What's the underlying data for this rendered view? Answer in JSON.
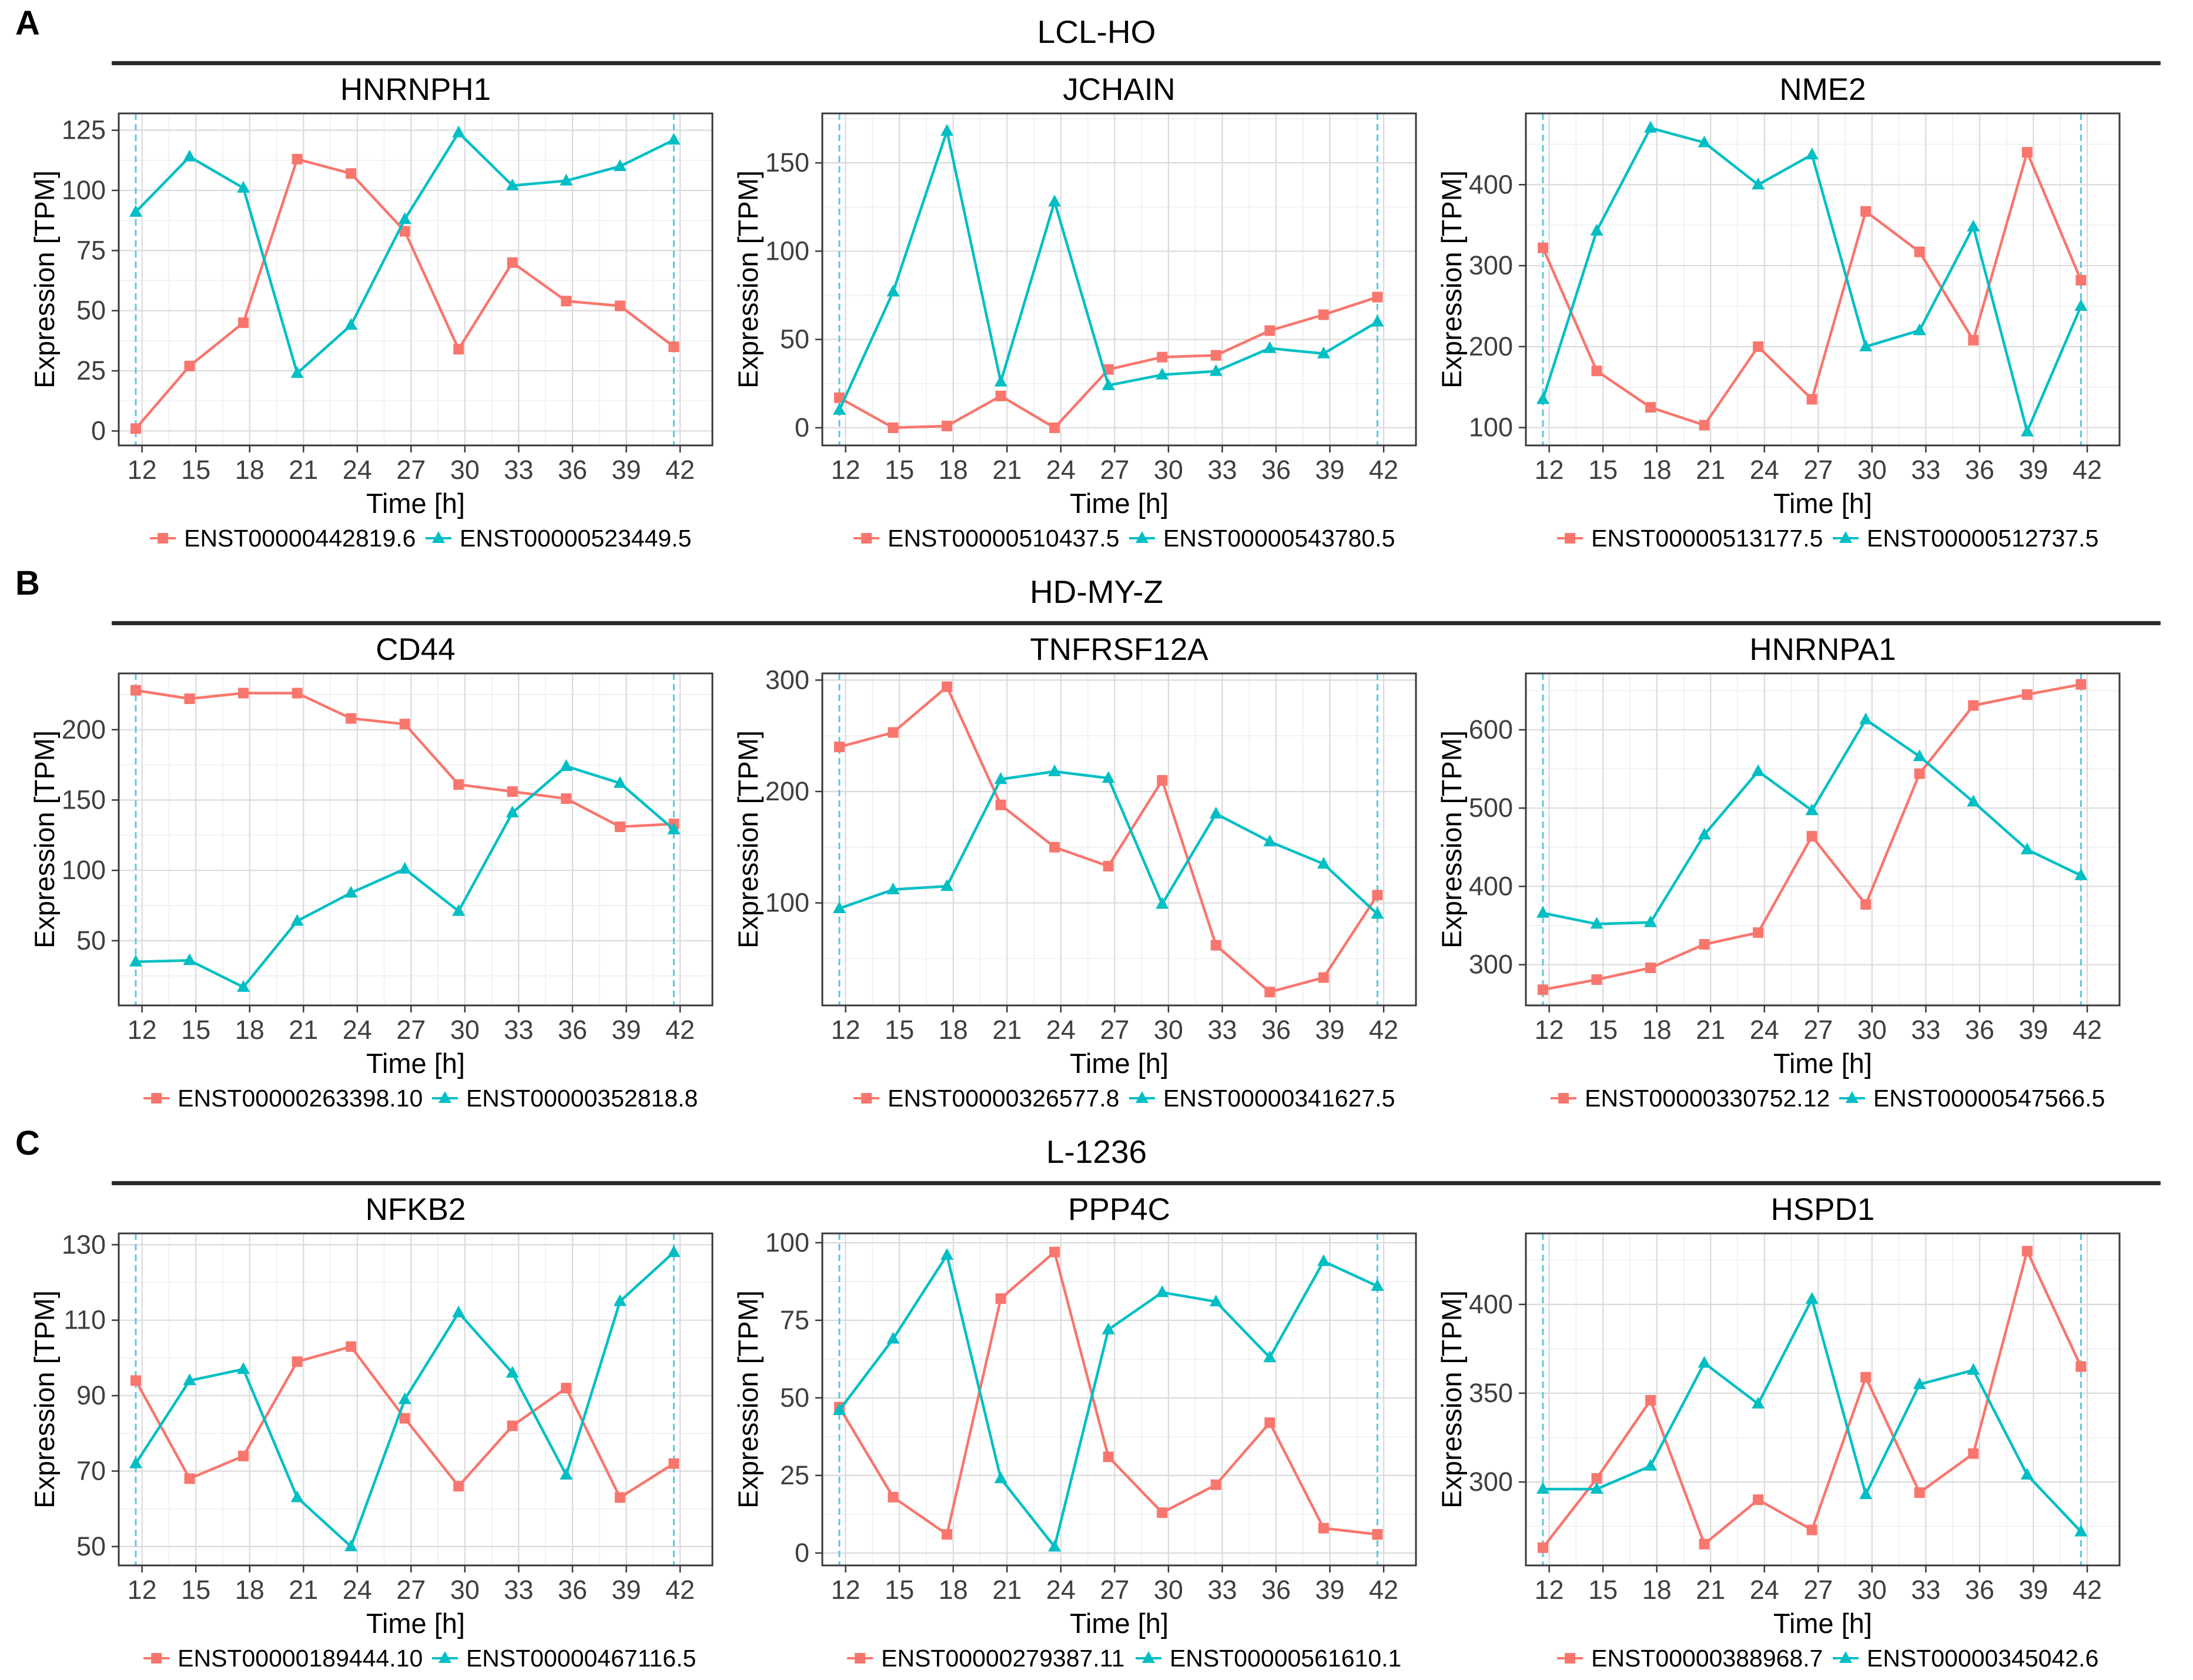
{
  "figure": {
    "panels": [
      {
        "label": "A",
        "cell_line": "LCL-HO",
        "chart_indexes": [
          0,
          1,
          2
        ]
      },
      {
        "label": "B",
        "cell_line": "HD-MY-Z",
        "chart_indexes": [
          3,
          4,
          5
        ]
      },
      {
        "label": "C",
        "cell_line": "L-1236",
        "chart_indexes": [
          6,
          7,
          8
        ]
      }
    ]
  },
  "colors": {
    "series1": "#F8766D",
    "series2": "#00BFC4",
    "vline": "#5BC8DC",
    "grid_major": "#DBDBDB",
    "grid_minor": "#EFEFEF",
    "panel_border": "#3a3a3a",
    "tick_label": "#3f3f3f",
    "axis_title": "#000000"
  },
  "axes": {
    "xlabel": "Time [h]",
    "ylabel": "Expression [TPM]",
    "x_ticks": [
      12,
      15,
      18,
      21,
      24,
      27,
      30,
      33,
      36,
      39,
      42
    ]
  },
  "chart_data": [
    {
      "type": "line",
      "title": "HNRNPH1",
      "panel": "A",
      "cell_line": "LCL-HO",
      "xlabel": "Time [h]",
      "ylabel": "Expression [TPM]",
      "x": [
        12,
        15,
        18,
        21,
        24,
        27,
        30,
        33,
        36,
        39,
        42
      ],
      "y_ticks": [
        0,
        25,
        50,
        75,
        100,
        125
      ],
      "ylim": [
        -6,
        132
      ],
      "grid": true,
      "legend_position": "bottom",
      "series": [
        {
          "name": "ENST00000442819.6",
          "color_key": "series1",
          "marker": "square",
          "values": [
            1,
            27,
            45,
            113,
            107,
            83,
            34,
            70,
            54,
            52,
            35
          ]
        },
        {
          "name": "ENST00000523449.5",
          "color_key": "series2",
          "marker": "triangle",
          "values": [
            91,
            114,
            101,
            24,
            44,
            88,
            124,
            102,
            104,
            110,
            121
          ]
        }
      ]
    },
    {
      "type": "line",
      "title": "JCHAIN",
      "panel": "A",
      "cell_line": "LCL-HO",
      "xlabel": "Time [h]",
      "ylabel": "Expression [TPM]",
      "x": [
        12,
        15,
        18,
        21,
        24,
        27,
        30,
        33,
        36,
        39,
        42
      ],
      "y_ticks": [
        0,
        50,
        100,
        150
      ],
      "ylim": [
        -10,
        178
      ],
      "grid": true,
      "legend_position": "bottom",
      "series": [
        {
          "name": "ENST00000510437.5",
          "color_key": "series1",
          "marker": "square",
          "values": [
            17,
            0,
            1,
            18,
            0,
            33,
            40,
            41,
            55,
            64,
            74
          ]
        },
        {
          "name": "ENST00000543780.5",
          "color_key": "series2",
          "marker": "triangle",
          "values": [
            10,
            77,
            168,
            26,
            128,
            24,
            30,
            32,
            45,
            42,
            60
          ]
        }
      ]
    },
    {
      "type": "line",
      "title": "NME2",
      "panel": "A",
      "cell_line": "LCL-HO",
      "xlabel": "Time [h]",
      "ylabel": "Expression [TPM]",
      "x": [
        12,
        15,
        18,
        21,
        24,
        27,
        30,
        33,
        36,
        39,
        42
      ],
      "y_ticks": [
        100,
        200,
        300,
        400
      ],
      "ylim": [
        78,
        488
      ],
      "grid": true,
      "legend_position": "bottom",
      "series": [
        {
          "name": "ENST00000513177.5",
          "color_key": "series1",
          "marker": "square",
          "values": [
            322,
            170,
            125,
            103,
            200,
            135,
            367,
            317,
            208,
            440,
            282
          ]
        },
        {
          "name": "ENST00000512737.5",
          "color_key": "series2",
          "marker": "triangle",
          "values": [
            135,
            343,
            470,
            452,
            400,
            437,
            200,
            220,
            348,
            95,
            250
          ]
        }
      ]
    },
    {
      "type": "line",
      "title": "CD44",
      "panel": "B",
      "cell_line": "HD-MY-Z",
      "xlabel": "Time [h]",
      "ylabel": "Expression [TPM]",
      "x": [
        12,
        15,
        18,
        21,
        24,
        27,
        30,
        33,
        36,
        39,
        42
      ],
      "y_ticks": [
        50,
        100,
        150,
        200
      ],
      "ylim": [
        4,
        240
      ],
      "grid": true,
      "legend_position": "bottom",
      "series": [
        {
          "name": "ENST00000263398.10",
          "color_key": "series1",
          "marker": "square",
          "values": [
            228,
            222,
            226,
            226,
            208,
            204,
            161,
            156,
            151,
            131,
            133
          ]
        },
        {
          "name": "ENST00000352818.8",
          "color_key": "series2",
          "marker": "triangle",
          "values": [
            35,
            36,
            17,
            64,
            84,
            101,
            71,
            141,
            174,
            162,
            129
          ]
        }
      ]
    },
    {
      "type": "line",
      "title": "TNFRSF12A",
      "panel": "B",
      "cell_line": "HD-MY-Z",
      "xlabel": "Time [h]",
      "ylabel": "Expression [TPM]",
      "x": [
        12,
        15,
        18,
        21,
        24,
        27,
        30,
        33,
        36,
        39,
        42
      ],
      "y_ticks": [
        100,
        200,
        300
      ],
      "ylim": [
        8,
        306
      ],
      "grid": true,
      "legend_position": "bottom",
      "series": [
        {
          "name": "ENST00000326577.8",
          "color_key": "series1",
          "marker": "square",
          "values": [
            240,
            253,
            294,
            188,
            150,
            133,
            210,
            62,
            20,
            33,
            107
          ]
        },
        {
          "name": "ENST00000341627.5",
          "color_key": "series2",
          "marker": "triangle",
          "values": [
            95,
            112,
            115,
            211,
            218,
            212,
            99,
            180,
            155,
            135,
            90
          ]
        }
      ]
    },
    {
      "type": "line",
      "title": "HNRNPA1",
      "panel": "B",
      "cell_line": "HD-MY-Z",
      "xlabel": "Time [h]",
      "ylabel": "Expression [TPM]",
      "x": [
        12,
        15,
        18,
        21,
        24,
        27,
        30,
        33,
        36,
        39,
        42
      ],
      "y_ticks": [
        300,
        400,
        500,
        600
      ],
      "ylim": [
        248,
        672
      ],
      "grid": true,
      "legend_position": "bottom",
      "series": [
        {
          "name": "ENST00000330752.12",
          "color_key": "series1",
          "marker": "square",
          "values": [
            268,
            281,
            296,
            326,
            341,
            464,
            377,
            544,
            631,
            645,
            658
          ]
        },
        {
          "name": "ENST00000547566.5",
          "color_key": "series2",
          "marker": "triangle",
          "values": [
            366,
            352,
            354,
            466,
            547,
            497,
            613,
            566,
            508,
            447,
            414
          ]
        }
      ]
    },
    {
      "type": "line",
      "title": "NFKB2",
      "panel": "C",
      "cell_line": "L-1236",
      "xlabel": "Time [h]",
      "ylabel": "Expression [TPM]",
      "x": [
        12,
        15,
        18,
        21,
        24,
        27,
        30,
        33,
        36,
        39,
        42
      ],
      "y_ticks": [
        50,
        70,
        90,
        110,
        130
      ],
      "ylim": [
        45,
        133
      ],
      "grid": true,
      "legend_position": "bottom",
      "series": [
        {
          "name": "ENST00000189444.10",
          "color_key": "series1",
          "marker": "square",
          "values": [
            94,
            68,
            74,
            99,
            103,
            84,
            66,
            82,
            92,
            63,
            72
          ]
        },
        {
          "name": "ENST00000467116.5",
          "color_key": "series2",
          "marker": "triangle",
          "values": [
            72,
            94,
            97,
            63,
            50,
            89,
            112,
            96,
            69,
            115,
            128
          ]
        }
      ]
    },
    {
      "type": "line",
      "title": "PPP4C",
      "panel": "C",
      "cell_line": "L-1236",
      "xlabel": "Time [h]",
      "ylabel": "Expression [TPM]",
      "x": [
        12,
        15,
        18,
        21,
        24,
        27,
        30,
        33,
        36,
        39,
        42
      ],
      "y_ticks": [
        0,
        25,
        50,
        75,
        100
      ],
      "ylim": [
        -4,
        103
      ],
      "grid": true,
      "legend_position": "bottom",
      "series": [
        {
          "name": "ENST00000279387.11",
          "color_key": "series1",
          "marker": "square",
          "values": [
            47,
            18,
            6,
            82,
            97,
            31,
            13,
            22,
            42,
            8,
            6
          ]
        },
        {
          "name": "ENST00000561610.1",
          "color_key": "series2",
          "marker": "triangle",
          "values": [
            46,
            69,
            96,
            24,
            2,
            72,
            84,
            81,
            63,
            94,
            86
          ]
        }
      ]
    },
    {
      "type": "line",
      "title": "HSPD1",
      "panel": "C",
      "cell_line": "L-1236",
      "xlabel": "Time [h]",
      "ylabel": "Expression [TPM]",
      "x": [
        12,
        15,
        18,
        21,
        24,
        27,
        30,
        33,
        36,
        39,
        42
      ],
      "y_ticks": [
        300,
        350,
        400
      ],
      "ylim": [
        253,
        440
      ],
      "grid": true,
      "legend_position": "bottom",
      "series": [
        {
          "name": "ENST00000388968.7",
          "color_key": "series1",
          "marker": "square",
          "values": [
            263,
            302,
            346,
            265,
            290,
            273,
            359,
            294,
            316,
            430,
            365
          ]
        },
        {
          "name": "ENST00000345042.6",
          "color_key": "series2",
          "marker": "triangle",
          "values": [
            296,
            296,
            309,
            367,
            344,
            403,
            293,
            355,
            363,
            304,
            272
          ]
        }
      ]
    }
  ]
}
